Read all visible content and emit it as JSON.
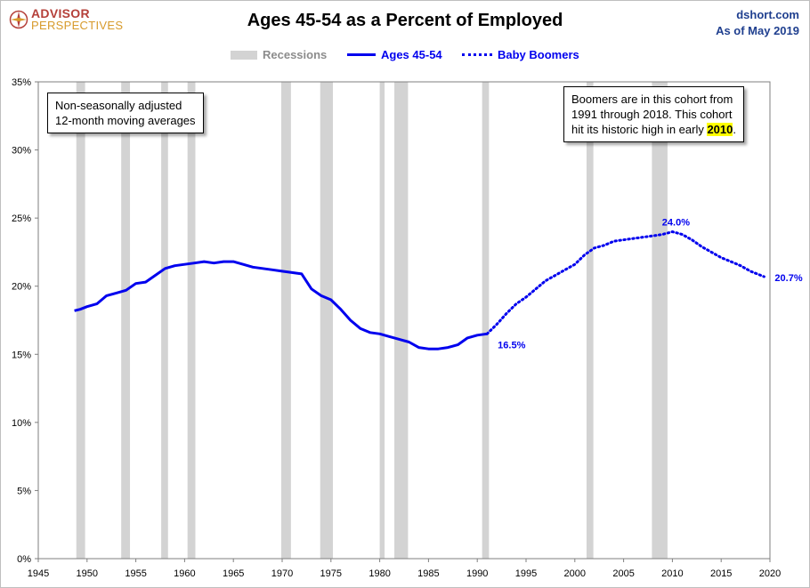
{
  "header": {
    "logo_line1": "ADVISOR",
    "logo_line2": "PERSPECTIVES",
    "title": "Ages 45-54 as a Percent of Employed",
    "source": "dshort.com",
    "date": "As of May 2019"
  },
  "legend": {
    "recessions": "Recessions",
    "series1": "Ages 45-54",
    "series2": "Baby Boomers"
  },
  "notes": {
    "left_line1": "Non-seasonally adjusted",
    "left_line2": "12-month moving averages",
    "right_line1": "Boomers are in this cohort from",
    "right_line2": "1991  through 2018.  This cohort",
    "right_line3_prefix": "hit its historic high in early ",
    "right_line3_highlight": "2010",
    "right_line3_suffix": "."
  },
  "colors": {
    "series": "#0000ee",
    "recession": "#d3d3d3",
    "axis_text": "#000000",
    "title": "#000000",
    "source": "#1f3f8f"
  },
  "chart_data": {
    "type": "line",
    "title": "Ages 45-54 as a Percent of Employed",
    "xlim": [
      1945,
      2020
    ],
    "ylim": [
      0,
      35
    ],
    "x_ticks": [
      1945,
      1950,
      1955,
      1960,
      1965,
      1970,
      1975,
      1980,
      1985,
      1990,
      1995,
      2000,
      2005,
      2010,
      2015,
      2020
    ],
    "y_ticks": [
      0,
      5,
      10,
      15,
      20,
      25,
      30,
      35
    ],
    "y_tick_labels": [
      "0%",
      "5%",
      "10%",
      "15%",
      "20%",
      "25%",
      "30%",
      "35%"
    ],
    "grid": false,
    "legend_position": "top",
    "recessions": [
      [
        1948.9,
        1949.8
      ],
      [
        1953.5,
        1954.4
      ],
      [
        1957.6,
        1958.3
      ],
      [
        1960.3,
        1961.1
      ],
      [
        1969.9,
        1970.9
      ],
      [
        1973.9,
        1975.2
      ],
      [
        1980.0,
        1980.5
      ],
      [
        1981.5,
        1982.9
      ],
      [
        1990.5,
        1991.2
      ],
      [
        2001.2,
        2001.9
      ],
      [
        2007.9,
        2009.5
      ]
    ],
    "series": [
      {
        "name": "Ages 45-54",
        "style": "solid",
        "x": [
          1948.7,
          1949.3,
          1950.0,
          1951.0,
          1952.0,
          1953.0,
          1954.0,
          1955.0,
          1956.0,
          1957.0,
          1958.0,
          1959.0,
          1960.0,
          1961.0,
          1962.0,
          1963.0,
          1964.0,
          1965.0,
          1966.0,
          1967.0,
          1968.0,
          1969.0,
          1970.0,
          1971.0,
          1972.0,
          1973.0,
          1974.0,
          1975.0,
          1976.0,
          1977.0,
          1978.0,
          1979.0,
          1980.0,
          1981.0,
          1982.0,
          1983.0,
          1984.0,
          1985.0,
          1986.0,
          1987.0,
          1988.0,
          1989.0,
          1990.0,
          1991.0
        ],
        "values": [
          18.2,
          18.3,
          18.5,
          18.7,
          19.3,
          19.5,
          19.7,
          20.2,
          20.3,
          20.8,
          21.3,
          21.5,
          21.6,
          21.7,
          21.8,
          21.7,
          21.8,
          21.8,
          21.6,
          21.4,
          21.3,
          21.2,
          21.1,
          21.0,
          20.9,
          19.8,
          19.3,
          19.0,
          18.3,
          17.5,
          16.9,
          16.6,
          16.5,
          16.3,
          16.1,
          15.9,
          15.5,
          15.4,
          15.4,
          15.5,
          15.7,
          16.2,
          16.4,
          16.5
        ]
      },
      {
        "name": "Baby Boomers",
        "style": "dotted",
        "x": [
          1991.0,
          1992.0,
          1993.0,
          1994.0,
          1995.0,
          1996.0,
          1997.0,
          1998.0,
          1999.0,
          2000.0,
          2001.0,
          2002.0,
          2003.0,
          2004.0,
          2005.0,
          2006.0,
          2007.0,
          2008.0,
          2009.0,
          2010.0,
          2011.0,
          2012.0,
          2013.0,
          2014.0,
          2015.0,
          2016.0,
          2017.0,
          2018.0,
          2019.4
        ],
        "values": [
          16.5,
          17.2,
          18.0,
          18.7,
          19.2,
          19.8,
          20.4,
          20.8,
          21.2,
          21.6,
          22.3,
          22.8,
          23.0,
          23.3,
          23.4,
          23.5,
          23.6,
          23.7,
          23.8,
          24.0,
          23.8,
          23.4,
          22.9,
          22.5,
          22.1,
          21.8,
          21.5,
          21.1,
          20.7
        ]
      }
    ],
    "annotations": [
      {
        "x": 1991.0,
        "y": 16.5,
        "label": "16.5%"
      },
      {
        "x": 2010.0,
        "y": 24.0,
        "label": "24.0%"
      },
      {
        "x": 2019.4,
        "y": 20.7,
        "label": "20.7%"
      }
    ]
  }
}
